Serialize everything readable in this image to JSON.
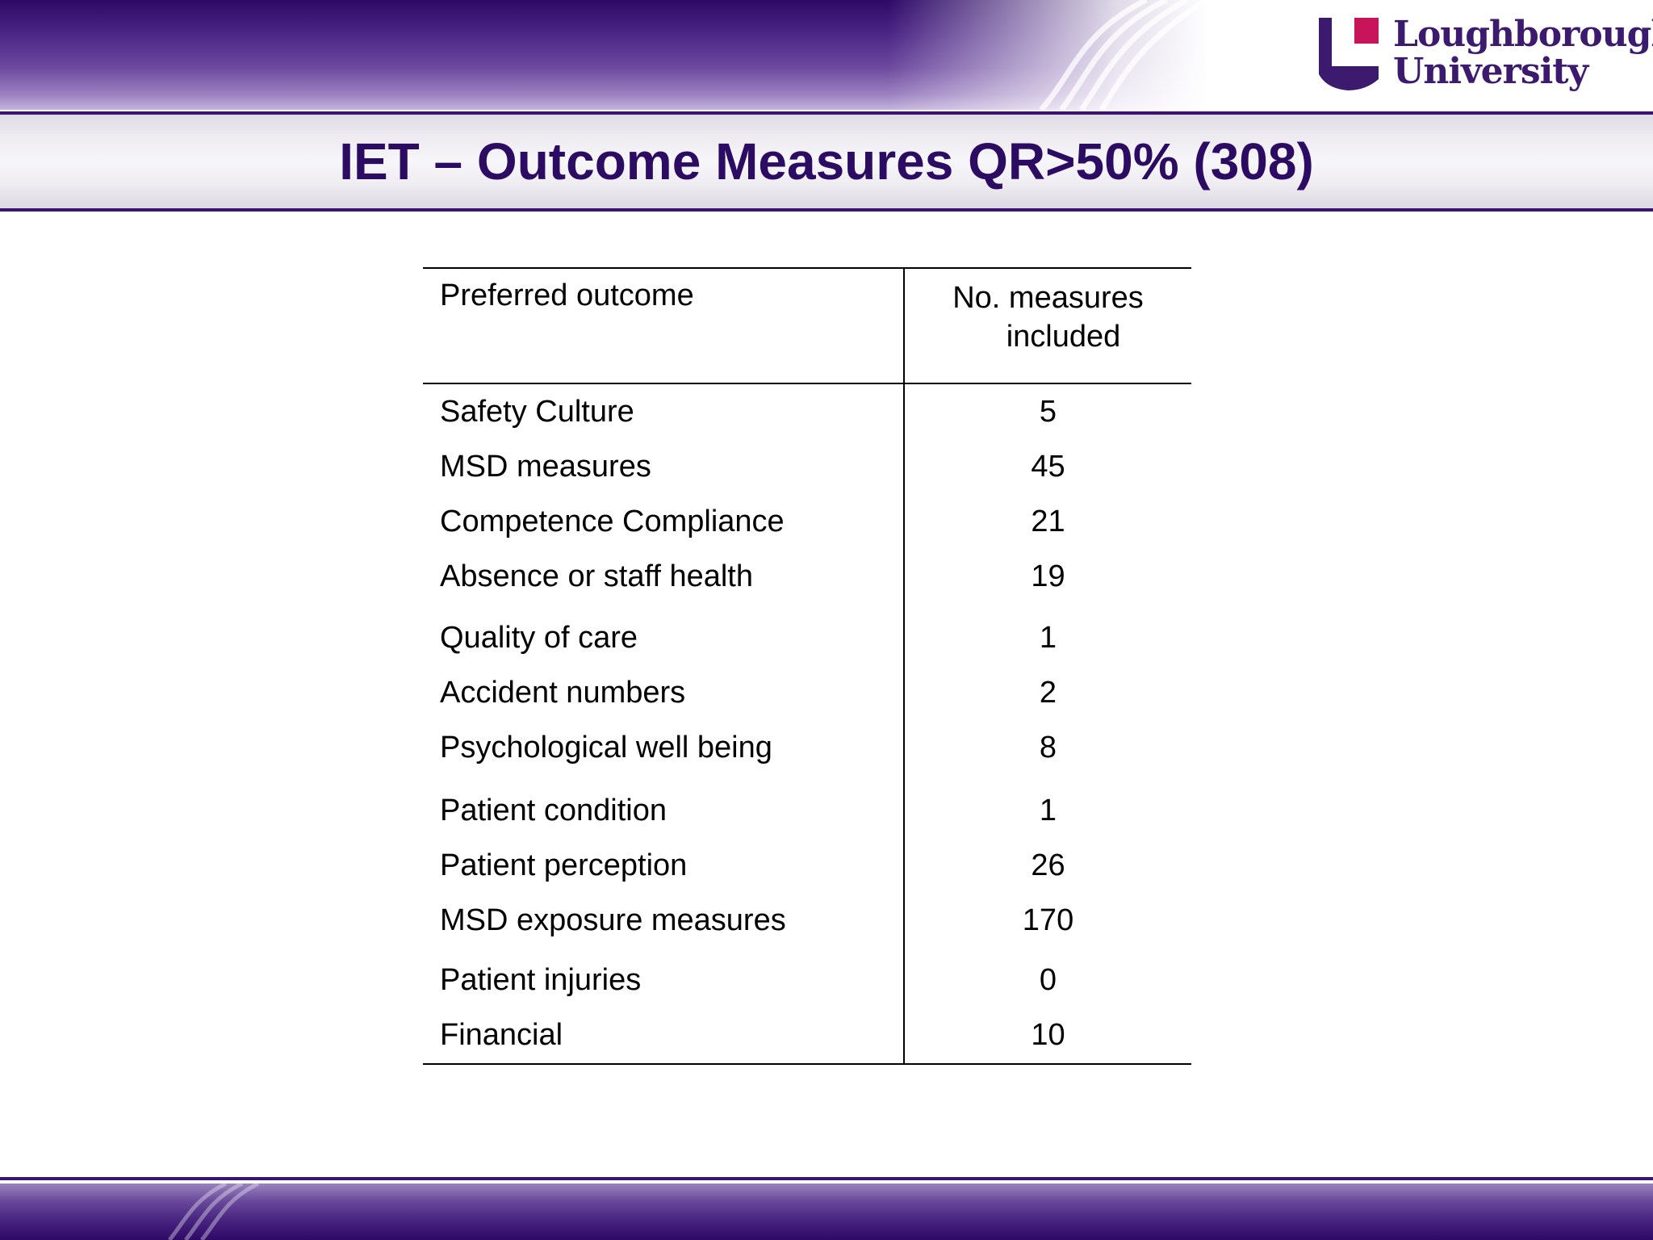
{
  "header": {
    "title": "IET – Outcome Measures QR>50% (308)",
    "logo": {
      "line1": "Loughborough",
      "line2": "University",
      "colors": {
        "shield": "#3c1a6e",
        "square": "#c8145a"
      }
    }
  },
  "table": {
    "columns": [
      "Preferred outcome",
      "No. measures included"
    ],
    "header_right_line1": "No. measures",
    "header_right_line2": "included",
    "rows": [
      {
        "outcome": "Safety Culture",
        "count": "5"
      },
      {
        "outcome": "MSD measures",
        "count": "45"
      },
      {
        "outcome": "Competence Compliance",
        "count": "21"
      },
      {
        "outcome": "Absence or staff health",
        "count": "19"
      },
      {
        "outcome": "Quality of care",
        "count": "1"
      },
      {
        "outcome": "Accident numbers",
        "count": "2"
      },
      {
        "outcome": "Psychological well being",
        "count": "8"
      },
      {
        "outcome": "Patient condition",
        "count": "1"
      },
      {
        "outcome": "Patient perception",
        "count": "26"
      },
      {
        "outcome": "MSD exposure measures",
        "count": "170"
      },
      {
        "outcome": "Patient injuries",
        "count": "0"
      },
      {
        "outcome": "Financial",
        "count": "10"
      }
    ]
  },
  "theme": {
    "brand_purple": "#2c0b63",
    "band_light": "#eeecf1"
  }
}
